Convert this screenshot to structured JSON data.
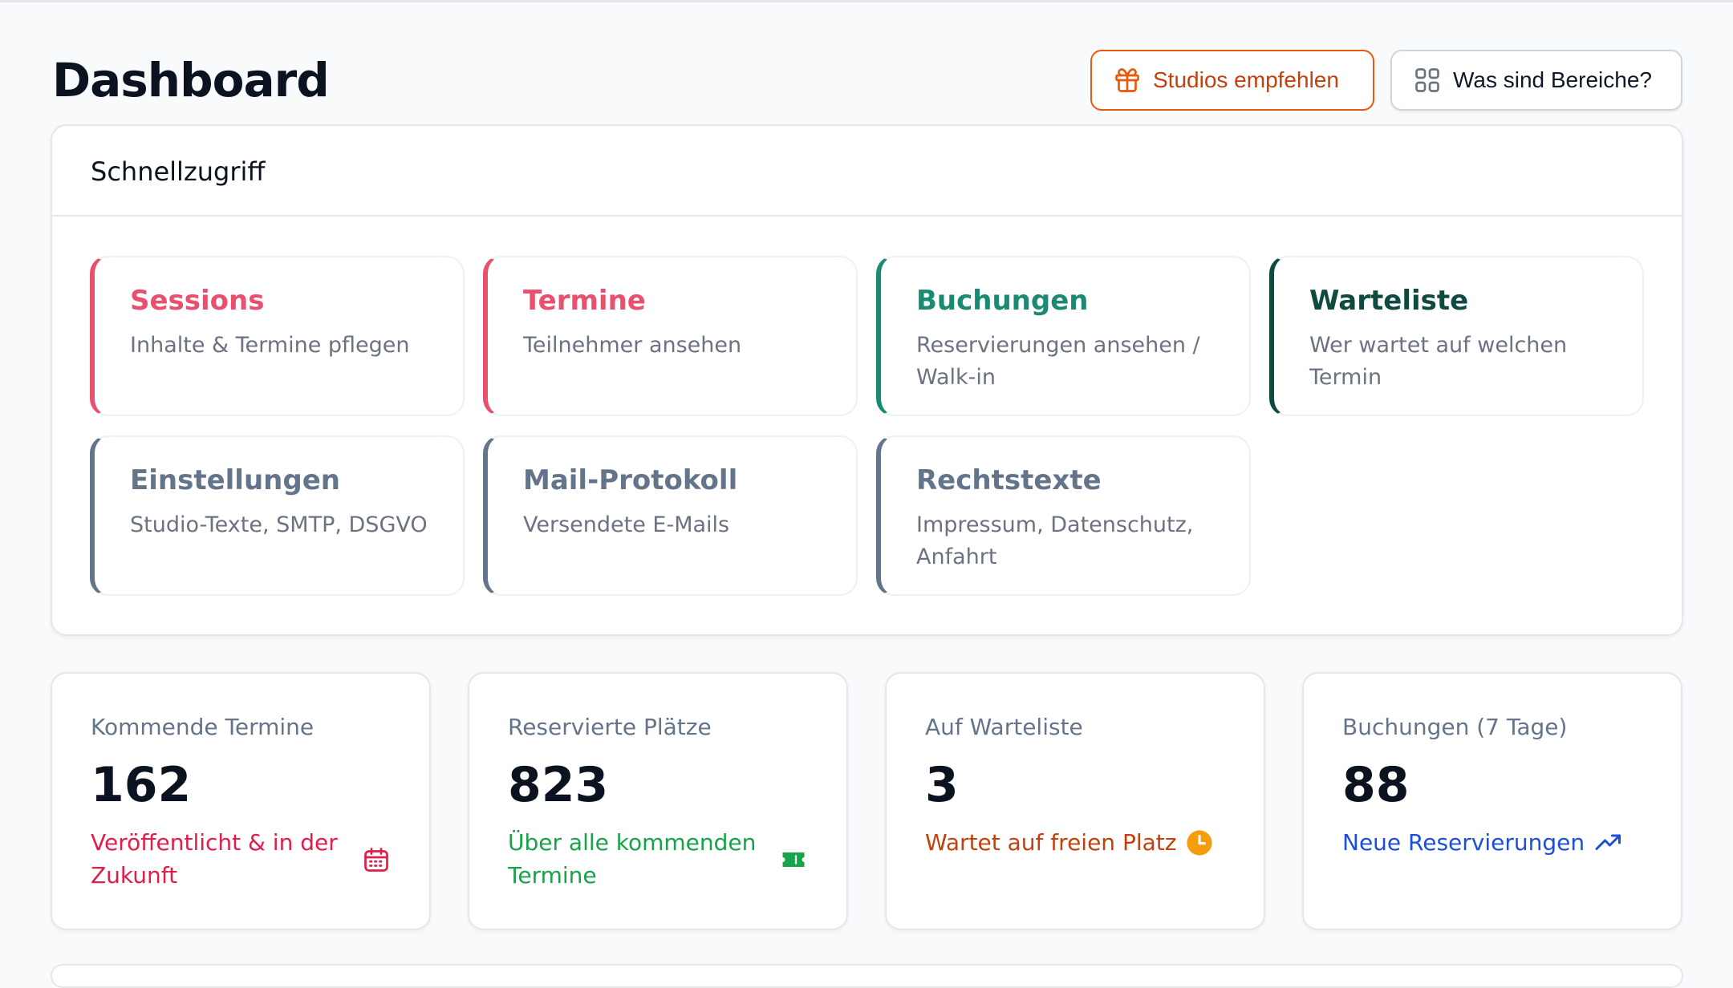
{
  "header": {
    "title": "Dashboard",
    "recommend_label": "Studios empfehlen",
    "areas_label": "Was sind Bereiche?"
  },
  "quick_access": {
    "title": "Schnellzugriff",
    "tiles": [
      {
        "title": "Sessions",
        "desc": "Inhalte & Termine pflegen",
        "accent": "#e8506e"
      },
      {
        "title": "Termine",
        "desc": "Teilnehmer ansehen",
        "accent": "#e8506e"
      },
      {
        "title": "Buchungen",
        "desc": "Reservierungen ansehen / Walk-in",
        "accent": "#1a8a72"
      },
      {
        "title": "Warteliste",
        "desc": "Wer wartet auf welchen Termin",
        "accent": "#0f4a40"
      },
      {
        "title": "Einstellungen",
        "desc": "Studio-Texte, SMTP, DSGVO",
        "accent": "#64748b"
      },
      {
        "title": "Mail-Protokoll",
        "desc": "Versendete E-Mails",
        "accent": "#64748b"
      },
      {
        "title": "Rechtstexte",
        "desc": "Impressum, Datenschutz, Anfahrt",
        "accent": "#64748b"
      }
    ]
  },
  "stats": [
    {
      "label": "Kommende Termine",
      "value": "162",
      "foot": "Veröffentlicht & in der Zukunft",
      "color": "#e11d48",
      "icon": "calendar-icon"
    },
    {
      "label": "Reservierte Plätze",
      "value": "823",
      "foot": "Über alle kommenden Termine",
      "color": "#16a34a",
      "icon": "ticket-icon"
    },
    {
      "label": "Auf Warteliste",
      "value": "3",
      "foot": "Wartet auf freien Platz",
      "color": "#c2410c",
      "icon": "clock-icon"
    },
    {
      "label": "Buchungen (7 Tage)",
      "value": "88",
      "foot": "Neue Reservierungen",
      "color": "#1d4ed8",
      "icon": "trending-up-icon"
    }
  ],
  "colors": {
    "recommend": "#ea580c",
    "accent_rose": "#e8506e",
    "accent_teal": "#1a8a72",
    "accent_dark_teal": "#0f4a40",
    "accent_slate": "#64748b"
  }
}
